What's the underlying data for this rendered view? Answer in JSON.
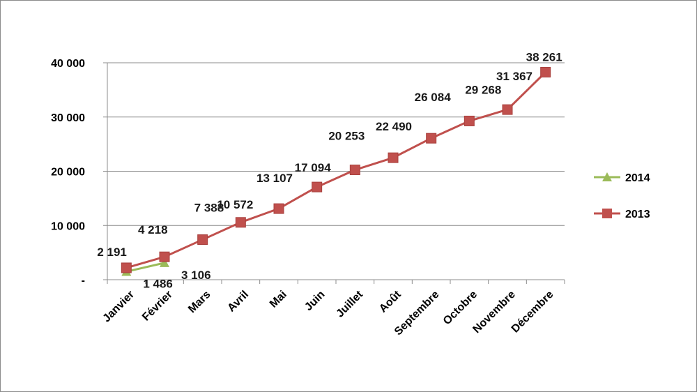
{
  "chart_data": {
    "type": "line",
    "categories": [
      "Janvier",
      "Février",
      "Mars",
      "Avril",
      "Mai",
      "Juin",
      "Juillet",
      "Août",
      "Septembre",
      "Octobre",
      "Novembre",
      "Décembre"
    ],
    "series": [
      {
        "name": "2014",
        "color": "#9bbb59",
        "marker": "triangle",
        "values": [
          1486,
          3106,
          null,
          null,
          null,
          null,
          null,
          null,
          null,
          null,
          null,
          null
        ],
        "labels": [
          "1 486",
          "3 106"
        ]
      },
      {
        "name": "2013",
        "color": "#c0504d",
        "marker": "square",
        "values": [
          2191,
          4218,
          7388,
          10572,
          13107,
          17094,
          20253,
          22490,
          26084,
          29268,
          31367,
          38261
        ],
        "labels": [
          "2 191",
          "4 218",
          "7 388",
          "10 572",
          "13 107",
          "17 094",
          "20 253",
          "22 490",
          "26 084",
          "29 268",
          "31 367",
          "38 261"
        ]
      }
    ],
    "ylim": [
      0,
      40000
    ],
    "yticks": [
      0,
      10000,
      20000,
      30000,
      40000
    ],
    "ytick_labels": [
      "-",
      "10 000",
      "20 000",
      "30 000",
      "40 000"
    ],
    "grid": true,
    "legend": "right",
    "title": "",
    "xlabel": "",
    "ylabel": ""
  }
}
